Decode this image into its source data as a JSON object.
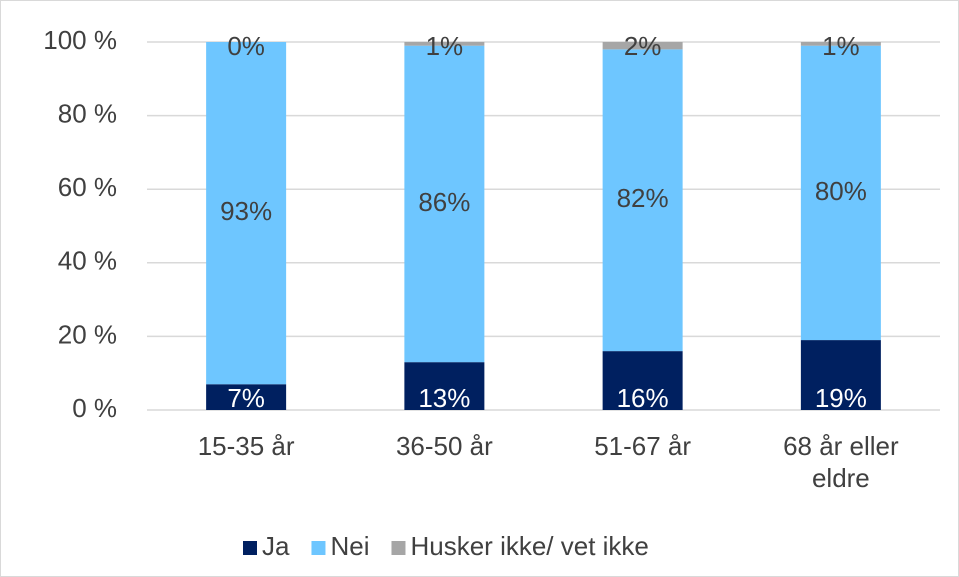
{
  "chart_data": {
    "type": "stacked-bar",
    "categories": [
      "15-35 år",
      "36-50 år",
      "51-67 år",
      "68 år eller eldre"
    ],
    "series": [
      {
        "name": "Ja",
        "color": "#002060",
        "values": [
          7,
          13,
          16,
          19
        ],
        "value_labels": [
          "7%",
          "13%",
          "16%",
          "19%"
        ]
      },
      {
        "name": "Nei",
        "color": "#6ec6ff",
        "values": [
          93,
          86,
          82,
          80
        ],
        "value_labels": [
          "93%",
          "86%",
          "82%",
          "80%"
        ]
      },
      {
        "name": "Husker ikke/ vet ikke",
        "color": "#a6a6a6",
        "values": [
          0,
          1,
          2,
          1
        ],
        "value_labels": [
          "0%",
          "1%",
          "2%",
          "1%"
        ]
      }
    ],
    "ylim": [
      0,
      100
    ],
    "yticks": [
      {
        "value": 0,
        "label": "0 %"
      },
      {
        "value": 20,
        "label": "20 %"
      },
      {
        "value": 40,
        "label": "40 %"
      },
      {
        "value": 60,
        "label": "60 %"
      },
      {
        "value": 80,
        "label": "80 %"
      },
      {
        "value": 100,
        "label": "100 %"
      }
    ],
    "grid": true,
    "legend": "bottom"
  }
}
